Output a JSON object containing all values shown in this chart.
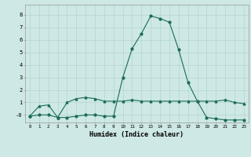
{
  "xlabel": "Humidex (Indice chaleur)",
  "background_color": "#cde8e5",
  "grid_color": "#b8d8d5",
  "line_color": "#1a6b5a",
  "x_values": [
    0,
    1,
    2,
    3,
    4,
    5,
    6,
    7,
    8,
    9,
    10,
    11,
    12,
    13,
    14,
    15,
    16,
    17,
    18,
    19,
    20,
    21,
    22,
    23
  ],
  "series1": [
    -0.1,
    0.7,
    0.8,
    -0.2,
    1.0,
    1.3,
    1.4,
    1.3,
    1.1,
    1.1,
    1.1,
    1.2,
    1.1,
    1.1,
    1.1,
    1.1,
    1.1,
    1.1,
    1.1,
    1.1,
    1.1,
    1.2,
    1.0,
    0.9
  ],
  "series2": [
    -0.1,
    0.0,
    0.0,
    -0.2,
    -0.2,
    -0.1,
    0.0,
    0.0,
    -0.1,
    -0.1,
    3.0,
    5.3,
    6.5,
    7.9,
    7.7,
    7.4,
    5.2,
    2.6,
    1.1,
    -0.2,
    -0.3,
    -0.4,
    -0.4,
    -0.4
  ],
  "ylim": [
    -0.6,
    8.8
  ],
  "xlim": [
    -0.5,
    23.5
  ],
  "yticks": [
    0,
    1,
    2,
    3,
    4,
    5,
    6,
    7,
    8
  ],
  "xtick_fontsize": 4.2,
  "ytick_fontsize": 5.0,
  "xlabel_fontsize": 6.0
}
